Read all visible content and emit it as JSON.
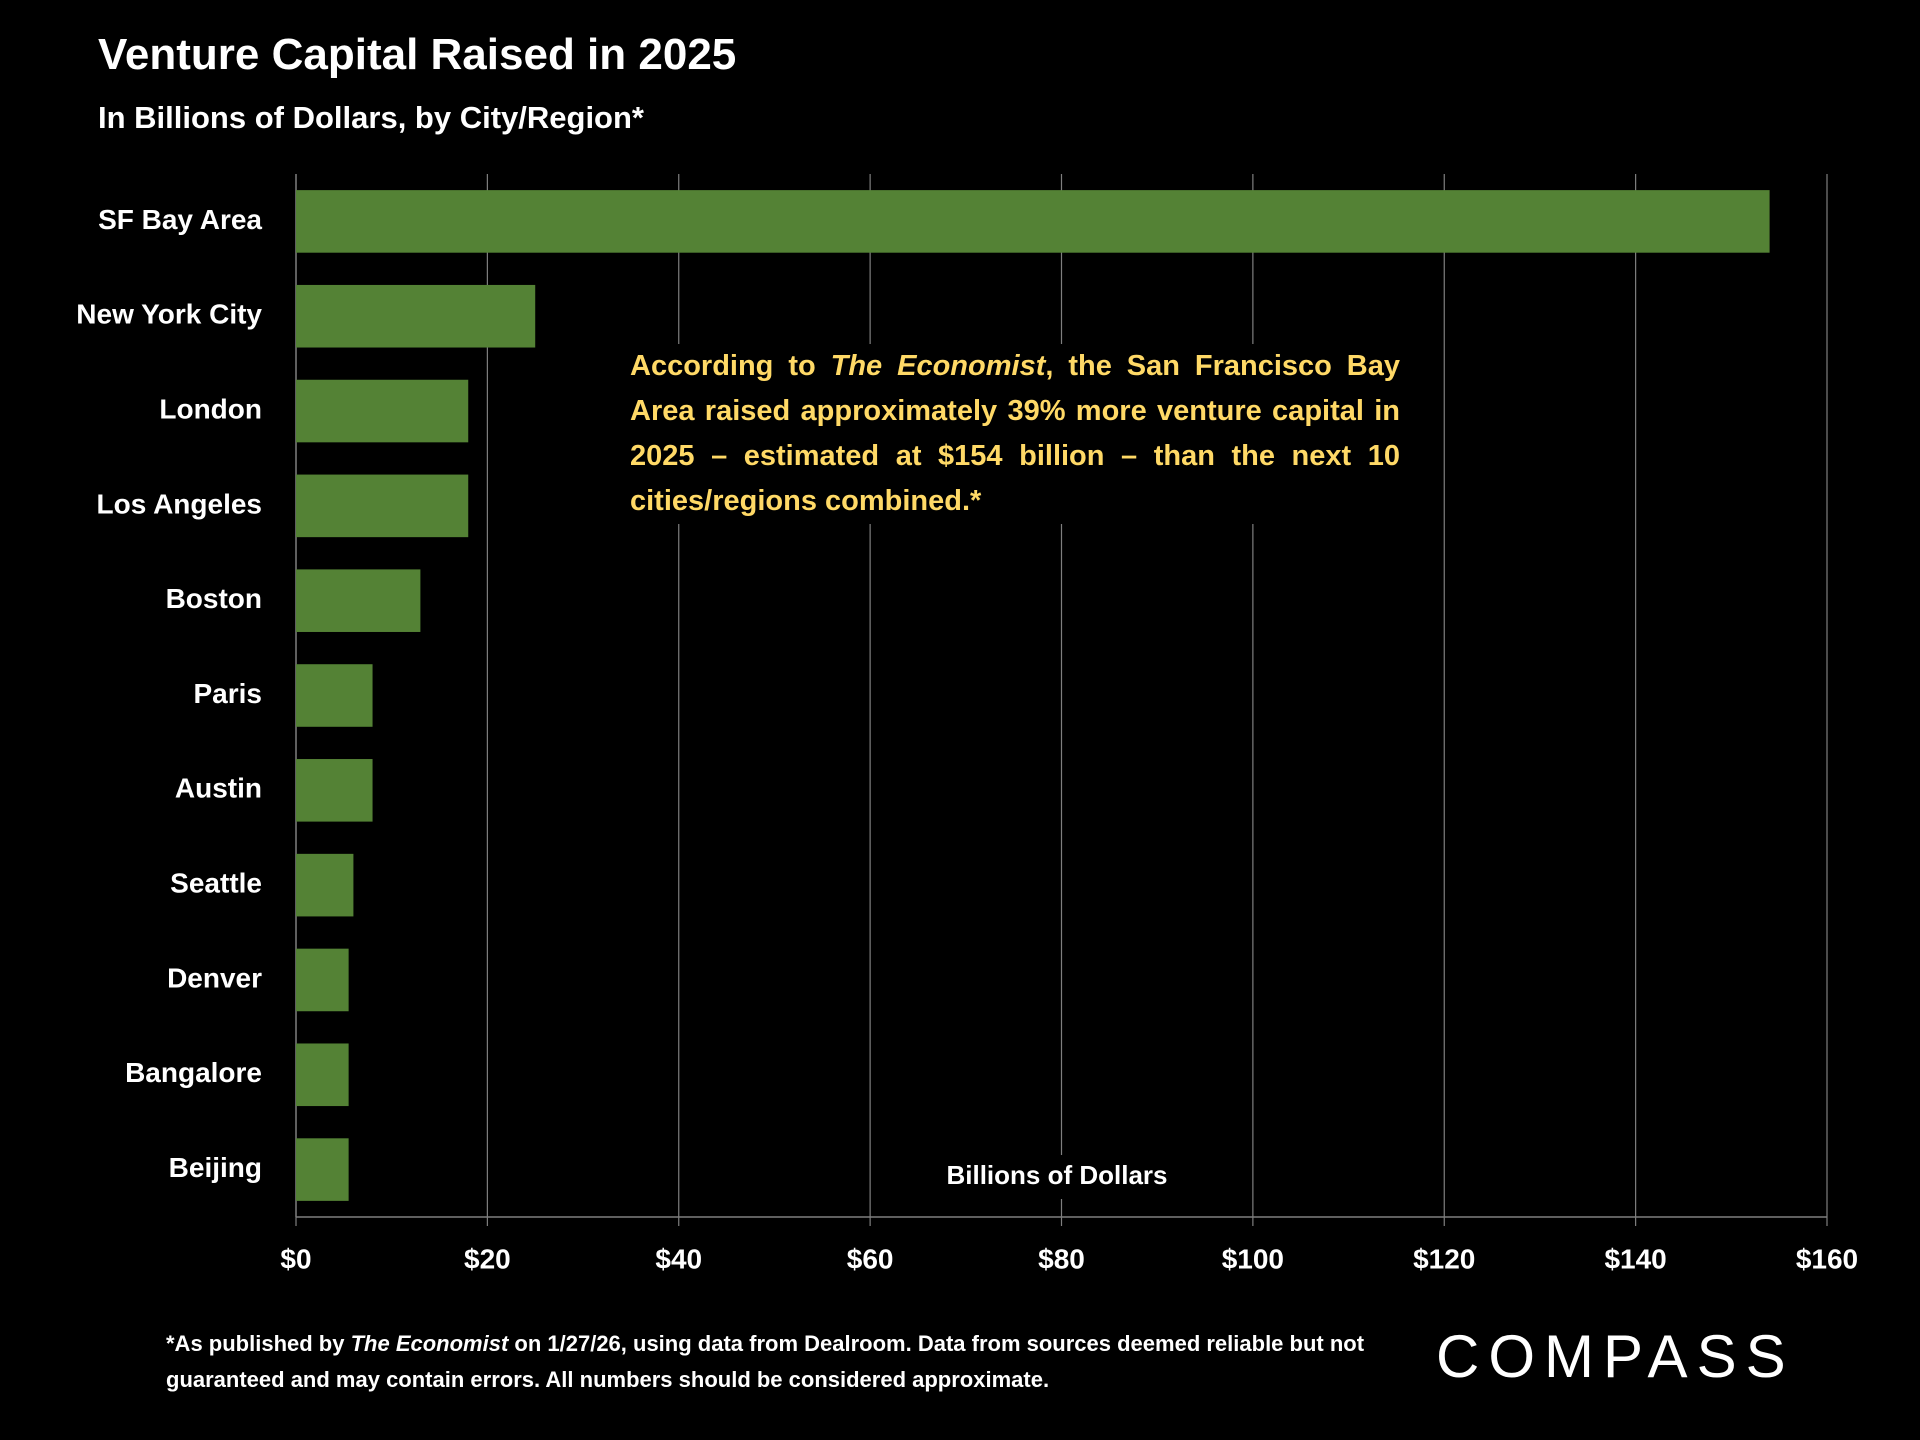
{
  "chart_data": {
    "type": "bar",
    "orientation": "horizontal",
    "title": "Venture Capital Raised in 2025",
    "subtitle": "In Billions of Dollars, by City/Region*",
    "categories": [
      "SF Bay Area",
      "New York City",
      "London",
      "Los Angeles",
      "Boston",
      "Paris",
      "Austin",
      "Seattle",
      "Denver",
      "Bangalore",
      "Beijing"
    ],
    "values": [
      154,
      25,
      18,
      18,
      13,
      8,
      8,
      6,
      5.5,
      5.5,
      5.5
    ],
    "color": "#548235",
    "xlim": [
      0,
      160
    ],
    "xticks": [
      {
        "value": 0,
        "label": "$0"
      },
      {
        "value": 20,
        "label": "$20"
      },
      {
        "value": 40,
        "label": "$40"
      },
      {
        "value": 60,
        "label": "$60"
      },
      {
        "value": 80,
        "label": "$80"
      },
      {
        "value": 100,
        "label": "$100"
      },
      {
        "value": 120,
        "label": "$120"
      },
      {
        "value": 140,
        "label": "$140"
      },
      {
        "value": 160,
        "label": "$160"
      }
    ],
    "xlabel": "Billions of Dollars",
    "grid": true,
    "annotation": [
      "According to ",
      "The Economist",
      ", the San Francisco Bay Area raised approximately 39% more venture capital in 2025 – estimated at $154 billion – than the next 10 cities/regions combined.*"
    ],
    "footnote": [
      "*As published by ",
      "The Economist",
      " on 1/27/26, using data from Dealroom. Data from sources deemed reliable but not guaranteed and may contain errors. All numbers should be considered approximate."
    ],
    "logo": "COMPASS"
  }
}
